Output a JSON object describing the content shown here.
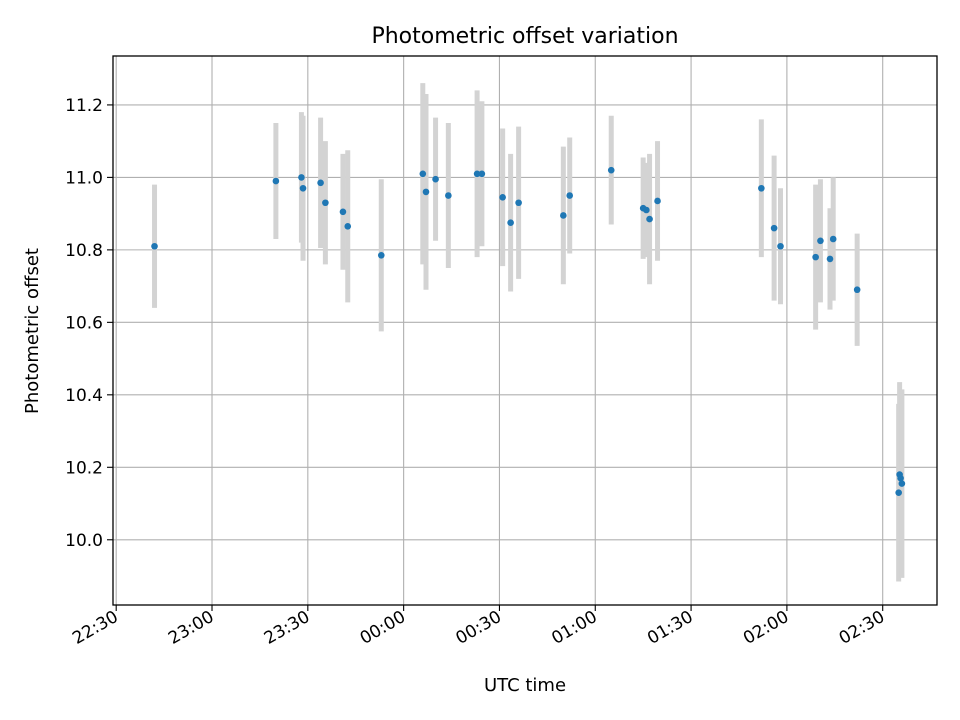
{
  "chart_data": {
    "type": "scatter",
    "title": "Photometric offset variation",
    "xlabel": "UTC time",
    "ylabel": "Photometric offset",
    "x_ticks": [
      "22:30",
      "23:00",
      "23:30",
      "00:00",
      "00:30",
      "01:00",
      "01:30",
      "02:00",
      "02:30"
    ],
    "y_ticks": [
      "10.0",
      "10.2",
      "10.4",
      "10.6",
      "10.8",
      "11.0",
      "11.2"
    ],
    "xlim": [
      "22:29",
      "02:47"
    ],
    "ylim": [
      9.82,
      11.335
    ],
    "grid": true,
    "error_bar_color": "#d3d3d3",
    "point_color": "#1f77b4",
    "points": [
      {
        "x": "22:42",
        "y": 10.81,
        "err": 0.17
      },
      {
        "x": "23:20",
        "y": 10.99,
        "err": 0.16
      },
      {
        "x": "23:28",
        "y": 11.0,
        "err": 0.18
      },
      {
        "x": "23:28.5",
        "y": 10.97,
        "err": 0.2
      },
      {
        "x": "23:34",
        "y": 10.985,
        "err": 0.18
      },
      {
        "x": "23:35.5",
        "y": 10.93,
        "err": 0.17
      },
      {
        "x": "23:41",
        "y": 10.905,
        "err": 0.16
      },
      {
        "x": "23:42.5",
        "y": 10.865,
        "err": 0.21
      },
      {
        "x": "23:53",
        "y": 10.785,
        "err": 0.21
      },
      {
        "x": "00:06",
        "y": 11.01,
        "err": 0.25
      },
      {
        "x": "00:07",
        "y": 10.96,
        "err": 0.27
      },
      {
        "x": "00:10",
        "y": 10.995,
        "err": 0.17
      },
      {
        "x": "00:14",
        "y": 10.95,
        "err": 0.2
      },
      {
        "x": "00:23",
        "y": 11.01,
        "err": 0.23
      },
      {
        "x": "00:24.5",
        "y": 11.01,
        "err": 0.2
      },
      {
        "x": "00:31",
        "y": 10.945,
        "err": 0.19
      },
      {
        "x": "00:33.5",
        "y": 10.875,
        "err": 0.19
      },
      {
        "x": "00:36",
        "y": 10.93,
        "err": 0.21
      },
      {
        "x": "00:50",
        "y": 10.895,
        "err": 0.19
      },
      {
        "x": "00:52",
        "y": 10.95,
        "err": 0.16
      },
      {
        "x": "01:05",
        "y": 11.02,
        "err": 0.15
      },
      {
        "x": "01:15",
        "y": 10.915,
        "err": 0.14
      },
      {
        "x": "01:16",
        "y": 10.91,
        "err": 0.13
      },
      {
        "x": "01:17",
        "y": 10.885,
        "err": 0.18
      },
      {
        "x": "01:19.5",
        "y": 10.935,
        "err": 0.165
      },
      {
        "x": "01:52",
        "y": 10.97,
        "err": 0.19
      },
      {
        "x": "01:56",
        "y": 10.86,
        "err": 0.2
      },
      {
        "x": "01:58",
        "y": 10.81,
        "err": 0.16
      },
      {
        "x": "02:09",
        "y": 10.78,
        "err": 0.2
      },
      {
        "x": "02:10.5",
        "y": 10.825,
        "err": 0.17
      },
      {
        "x": "02:13.5",
        "y": 10.775,
        "err": 0.14
      },
      {
        "x": "02:14.5",
        "y": 10.83,
        "err": 0.17
      },
      {
        "x": "02:22",
        "y": 10.69,
        "err": 0.155
      },
      {
        "x": "02:35",
        "y": 10.13,
        "err": 0.245
      },
      {
        "x": "02:35.3",
        "y": 10.18,
        "err": 0.255
      },
      {
        "x": "02:35.6",
        "y": 10.17,
        "err": 0.24
      },
      {
        "x": "02:36",
        "y": 10.155,
        "err": 0.26
      }
    ]
  }
}
